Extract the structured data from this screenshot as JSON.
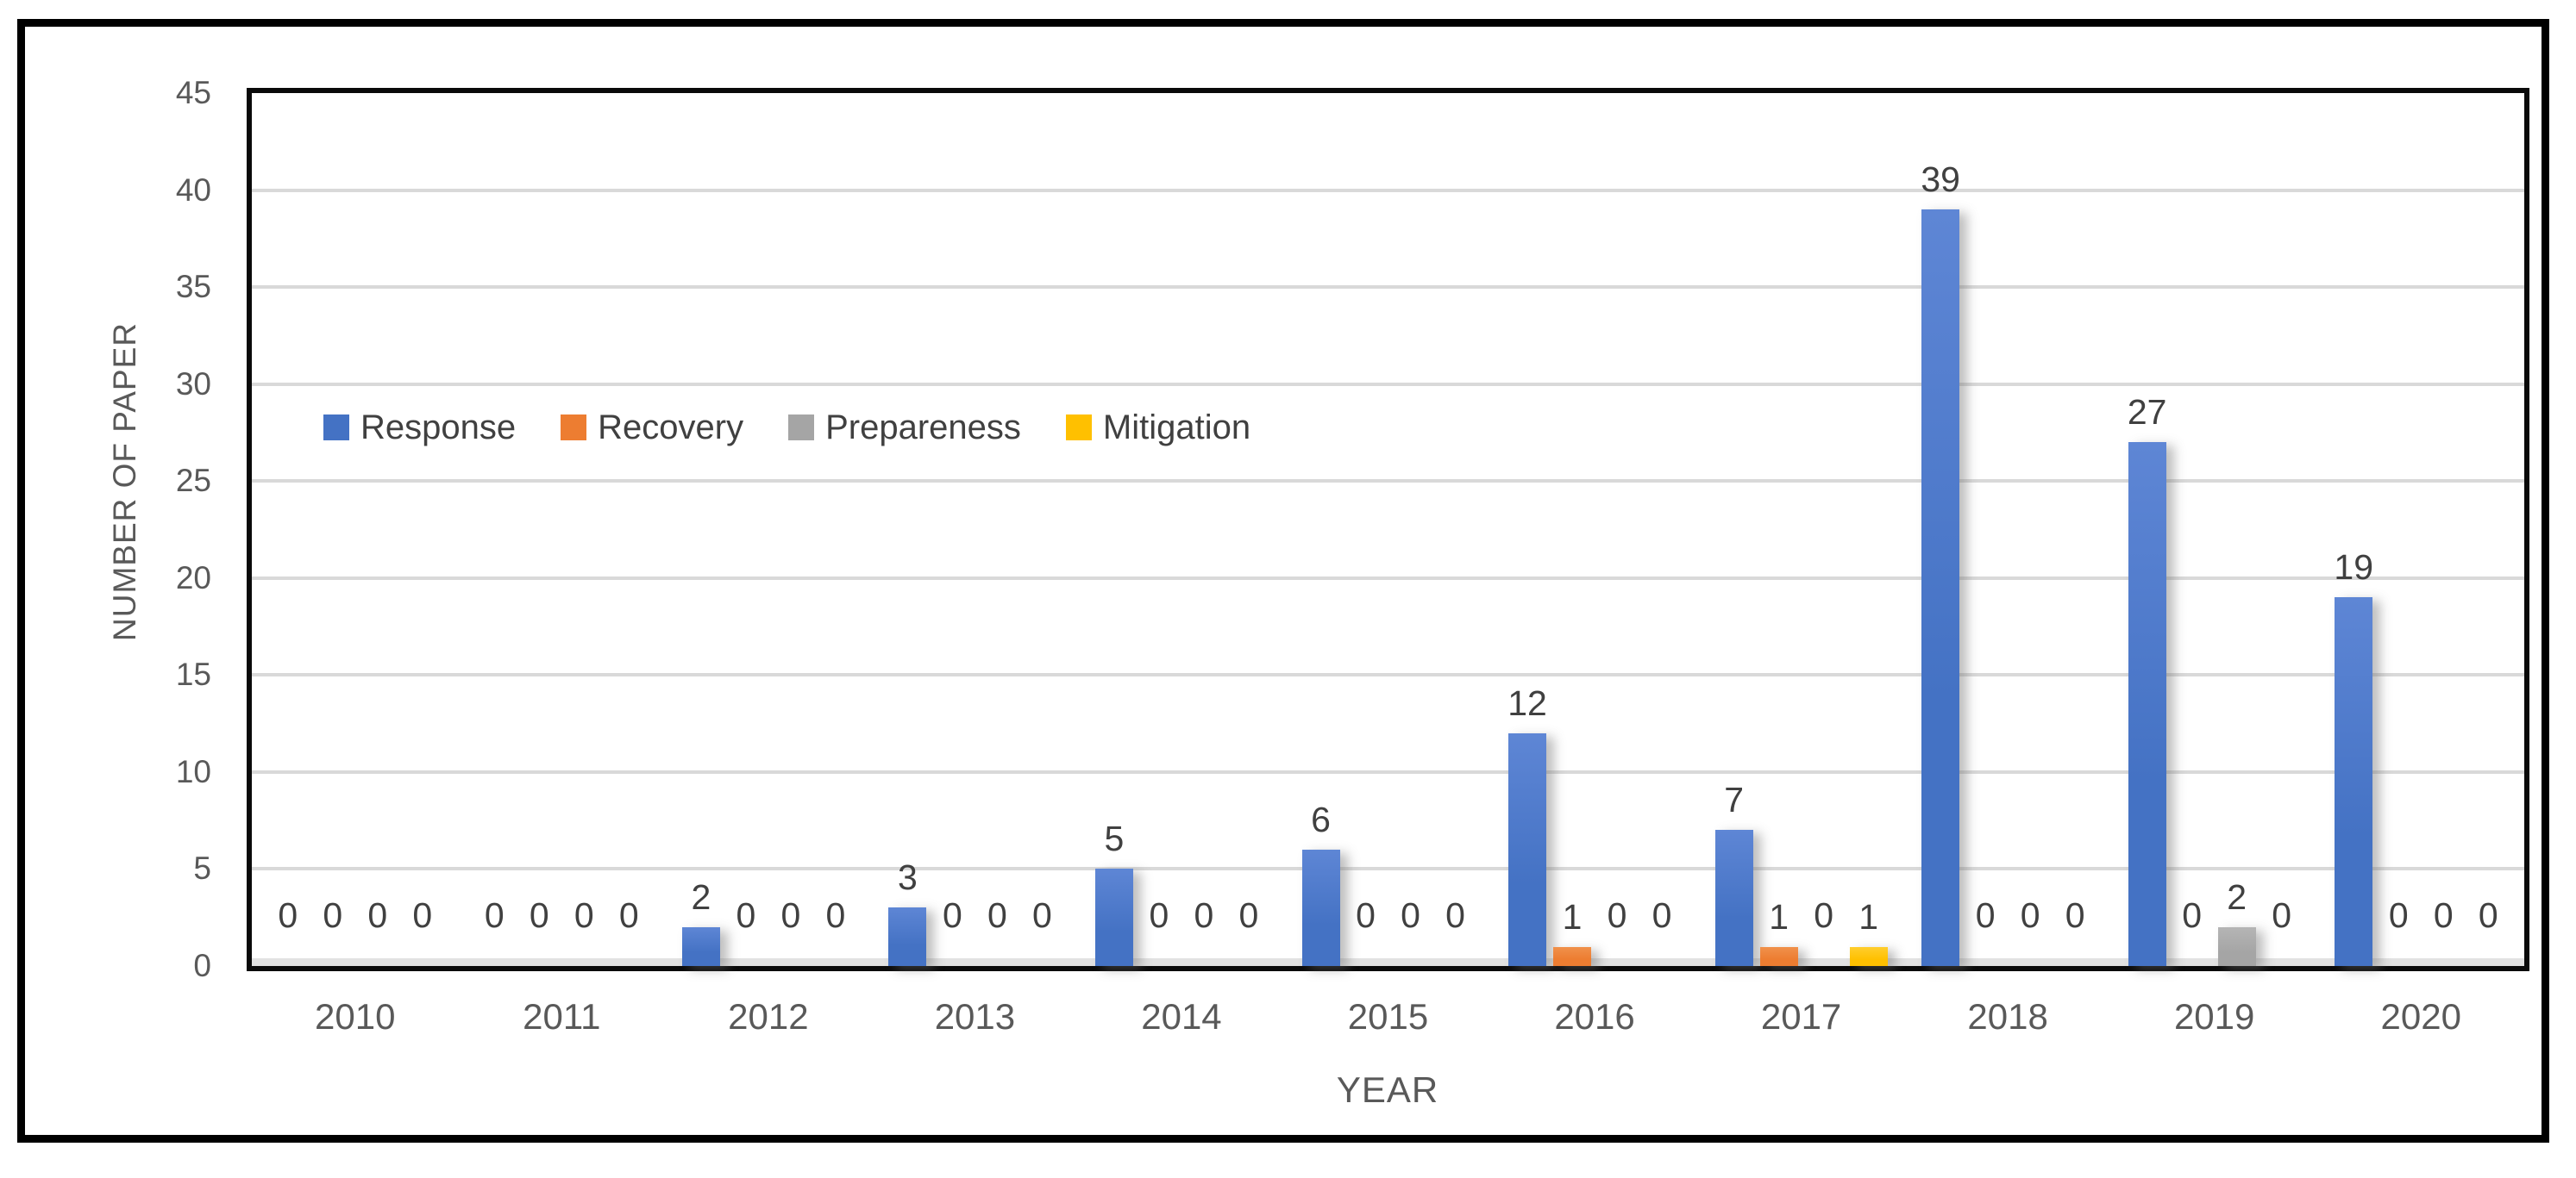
{
  "chart_data": {
    "type": "bar",
    "title": "",
    "xlabel": "YEAR",
    "ylabel": "NUMBER OF PAPER",
    "categories": [
      "2010",
      "2011",
      "2012",
      "2013",
      "2014",
      "2015",
      "2016",
      "2017",
      "2018",
      "2019",
      "2020"
    ],
    "series": [
      {
        "name": "Response",
        "color": "#4472C4",
        "color_top": "#5E86D5",
        "values": [
          0,
          0,
          2,
          3,
          5,
          6,
          12,
          7,
          39,
          27,
          19
        ]
      },
      {
        "name": "Recovery",
        "color": "#ED7D31",
        "color_top": "#F0914B",
        "values": [
          0,
          0,
          0,
          0,
          0,
          0,
          1,
          1,
          0,
          0,
          0
        ]
      },
      {
        "name": "Prepareness",
        "color": "#A5A5A5",
        "color_top": "#B5B5B5",
        "values": [
          0,
          0,
          0,
          0,
          0,
          0,
          0,
          0,
          0,
          2,
          0
        ]
      },
      {
        "name": "Mitigation",
        "color": "#FFC000",
        "color_top": "#FFCE2E",
        "values": [
          0,
          0,
          0,
          0,
          0,
          0,
          0,
          1,
          0,
          0,
          0
        ]
      }
    ],
    "ylim": [
      0,
      45
    ],
    "yticks": [
      0,
      5,
      10,
      15,
      20,
      25,
      30,
      35,
      40,
      45
    ],
    "grid": true,
    "show_data_labels": true,
    "legend_position": "inside-top-left"
  },
  "style_colors": {
    "gridline": "#D9D9D9",
    "axis_text": "#595959",
    "data_label_text": "#404040",
    "legend_text": "#404040",
    "plot_border": "#000000",
    "frame_border": "#000000",
    "baseline_strip": "#E2E2E2",
    "background": "#FFFFFF"
  }
}
